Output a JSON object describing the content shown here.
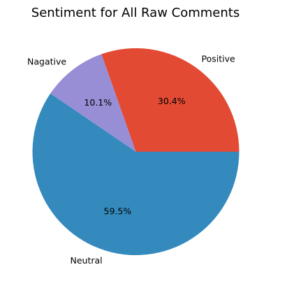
{
  "chart_data": {
    "type": "pie",
    "title": "Sentiment for All Raw Comments",
    "slices": [
      {
        "label": "Positive",
        "value": 30.4,
        "pct_label": "30.4%",
        "color": "#E24A33"
      },
      {
        "label": "Nagative",
        "value": 10.1,
        "pct_label": "10.1%",
        "color": "#988ED5"
      },
      {
        "label": "Neutral",
        "value": 59.5,
        "pct_label": "59.5%",
        "color": "#348ABD"
      }
    ],
    "start_angle_deg": 0,
    "direction": "counterclockwise",
    "legend": "none"
  }
}
